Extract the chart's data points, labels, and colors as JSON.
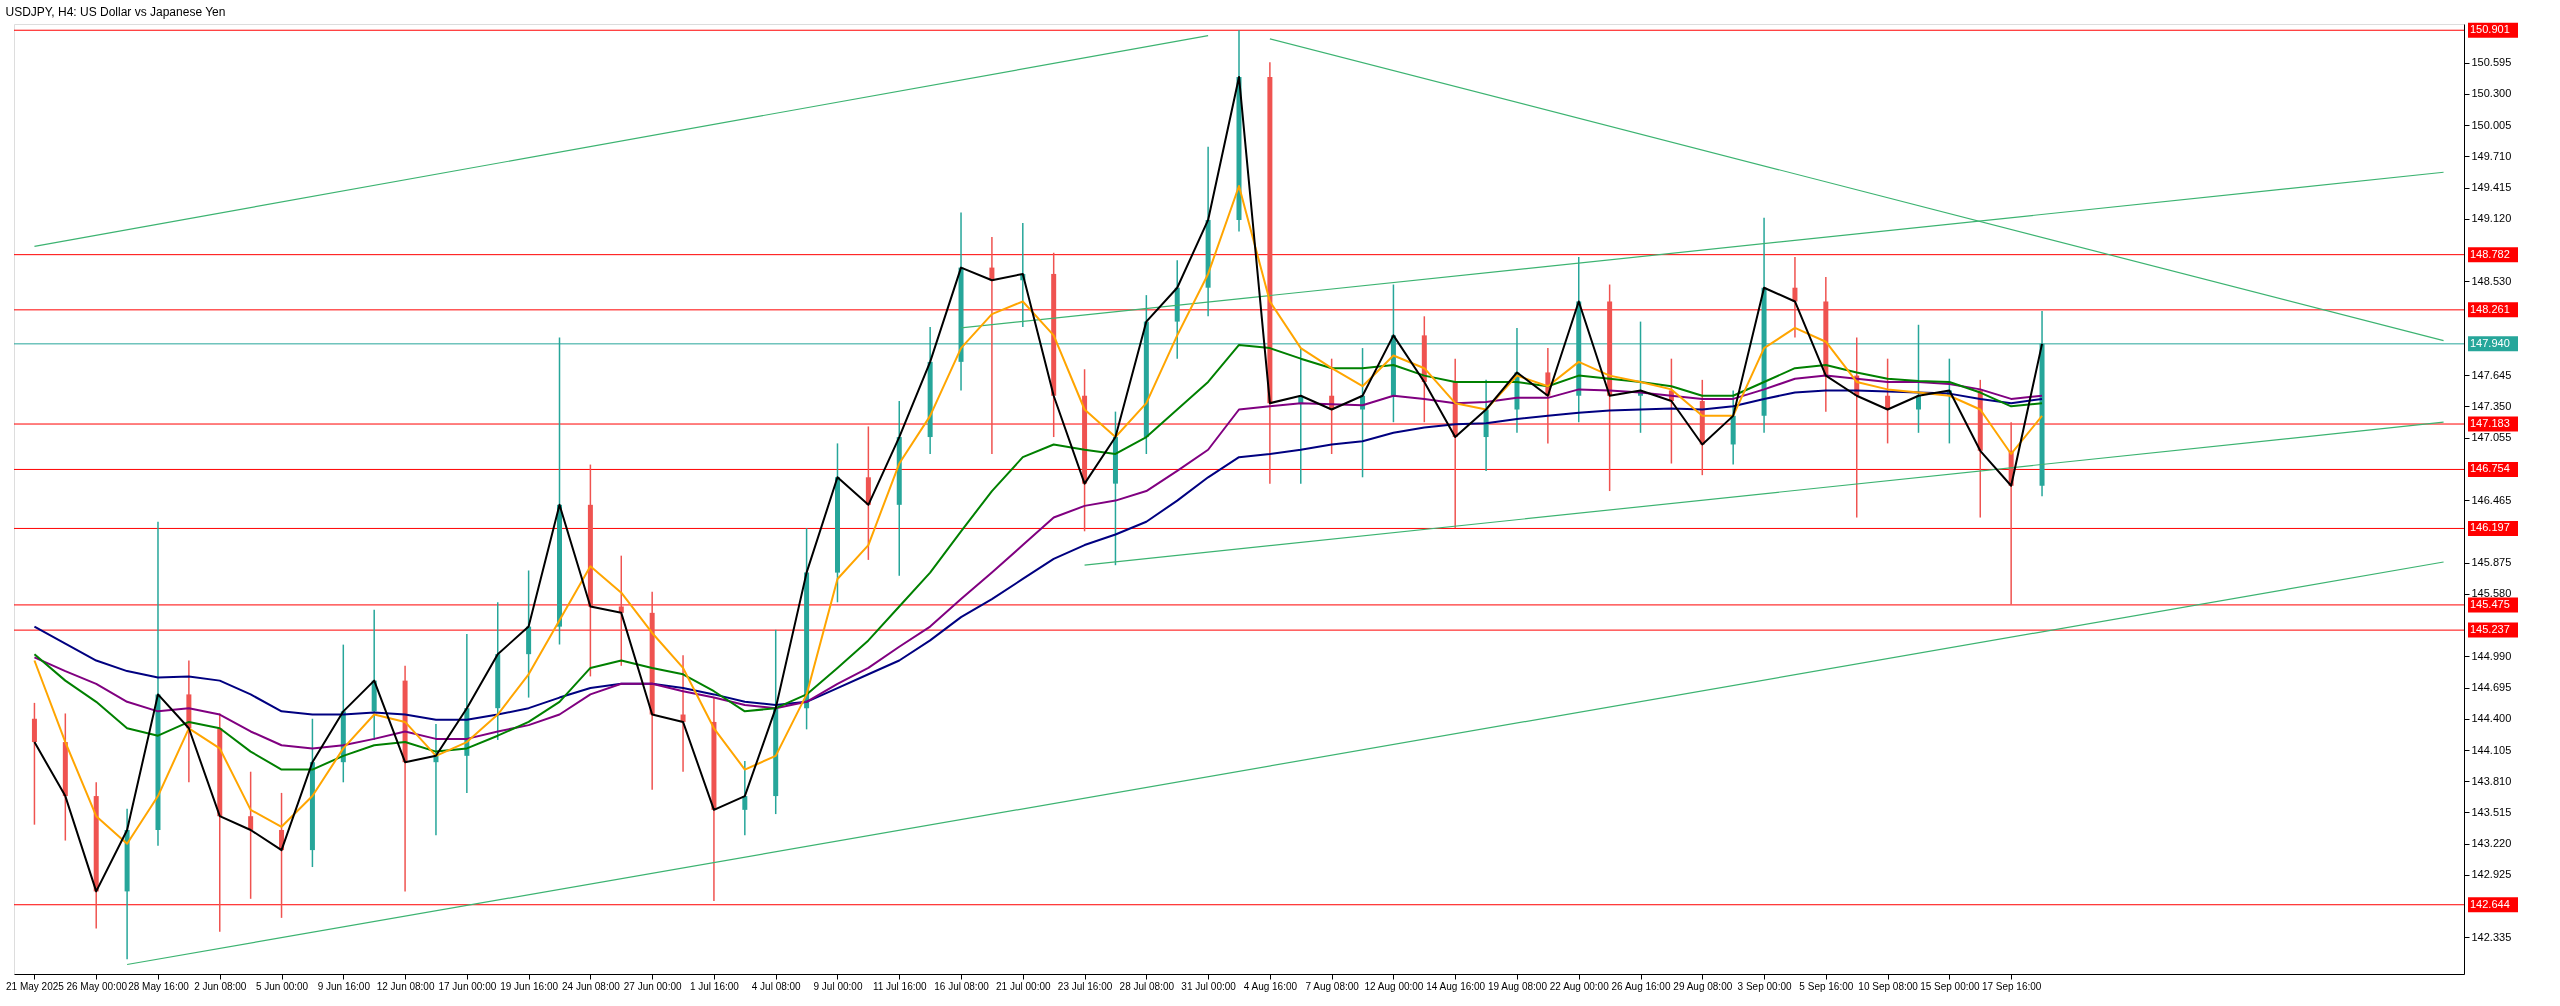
{
  "chart_data": {
    "type": "candlestick",
    "title": "USDJPY, H4:  US Dollar vs Japanese Yen",
    "categories": [
      "21 May 2025",
      null,
      "26 May 00:00",
      null,
      "28 May 16:00",
      null,
      "2 Jun 08:00",
      null,
      "5 Jun 00:00",
      null,
      "9 Jun 16:00",
      null,
      "12 Jun 08:00",
      null,
      "17 Jun 00:00",
      null,
      "19 Jun 16:00",
      null,
      "24 Jun 08:00",
      null,
      "27 Jun 00:00",
      null,
      "1 Jul 16:00",
      null,
      "4 Jul 08:00",
      null,
      "9 Jul 00:00",
      null,
      "11 Jul 16:00",
      null,
      "16 Jul 08:00",
      null,
      "21 Jul 00:00",
      null,
      "23 Jul 16:00",
      null,
      "28 Jul 08:00",
      null,
      "31 Jul 00:00",
      null,
      "4 Aug 16:00",
      null,
      "7 Aug 08:00",
      null,
      "12 Aug 00:00",
      null,
      "14 Aug 16:00",
      null,
      "19 Aug 08:00",
      null,
      "22 Aug 00:00",
      null,
      "26 Aug 16:00",
      null,
      "29 Aug 08:00",
      null,
      "3 Sep 00:00",
      null,
      "5 Sep 16:00",
      null,
      "10 Sep 08:00",
      null,
      "15 Sep 00:00",
      null,
      "17 Sep 16:00",
      null,
      null,
      null,
      null,
      null,
      null,
      null,
      null,
      null,
      null,
      null,
      null,
      null,
      null
    ],
    "ohlc": [
      [
        144.4,
        144.55,
        143.4,
        144.18
      ],
      [
        144.18,
        144.45,
        143.25,
        143.67
      ],
      [
        143.67,
        143.8,
        142.42,
        142.77
      ],
      [
        142.77,
        143.55,
        142.13,
        143.35
      ],
      [
        143.35,
        146.26,
        143.2,
        144.63
      ],
      [
        144.63,
        144.95,
        143.8,
        144.31
      ],
      [
        144.31,
        144.45,
        142.39,
        143.48
      ],
      [
        143.48,
        143.9,
        142.7,
        143.35
      ],
      [
        143.35,
        143.7,
        142.52,
        143.16
      ],
      [
        143.16,
        144.4,
        143.0,
        143.99
      ],
      [
        143.99,
        145.1,
        143.8,
        144.47
      ],
      [
        144.47,
        145.43,
        144.2,
        144.76
      ],
      [
        144.76,
        144.9,
        142.77,
        143.99
      ],
      [
        143.99,
        144.35,
        143.3,
        144.05
      ],
      [
        144.05,
        145.2,
        143.7,
        144.5
      ],
      [
        144.5,
        145.5,
        144.2,
        145.01
      ],
      [
        145.01,
        145.8,
        144.6,
        145.27
      ],
      [
        145.27,
        148.0,
        145.1,
        146.42
      ],
      [
        146.42,
        146.8,
        144.8,
        145.46
      ],
      [
        145.46,
        145.94,
        144.9,
        145.4
      ],
      [
        145.4,
        145.6,
        143.73,
        144.44
      ],
      [
        144.44,
        145.0,
        143.9,
        144.37
      ],
      [
        144.37,
        144.6,
        142.68,
        143.54
      ],
      [
        143.54,
        144.0,
        143.3,
        143.67
      ],
      [
        143.67,
        145.24,
        143.5,
        144.5
      ],
      [
        144.5,
        146.2,
        144.3,
        145.78
      ],
      [
        145.78,
        147.0,
        145.5,
        146.68
      ],
      [
        146.68,
        147.16,
        145.9,
        146.42
      ],
      [
        146.42,
        147.4,
        145.75,
        147.06
      ],
      [
        147.06,
        148.1,
        146.9,
        147.77
      ],
      [
        147.77,
        149.18,
        147.5,
        148.66
      ],
      [
        148.66,
        148.95,
        146.9,
        148.54
      ],
      [
        148.54,
        149.08,
        148.1,
        148.6
      ],
      [
        148.6,
        148.8,
        147.06,
        147.45
      ],
      [
        147.45,
        147.7,
        146.17,
        146.62
      ],
      [
        146.62,
        147.3,
        145.85,
        147.06
      ],
      [
        147.06,
        148.4,
        146.9,
        148.15
      ],
      [
        148.15,
        148.73,
        147.8,
        148.47
      ],
      [
        148.47,
        149.8,
        148.2,
        149.11
      ],
      [
        149.11,
        150.9,
        149.0,
        150.46
      ],
      [
        150.46,
        150.6,
        146.62,
        147.38
      ],
      [
        147.38,
        147.9,
        146.62,
        147.45
      ],
      [
        147.45,
        147.8,
        146.9,
        147.32
      ],
      [
        147.32,
        147.9,
        146.68,
        147.45
      ],
      [
        147.45,
        148.5,
        147.2,
        148.02
      ],
      [
        148.02,
        148.2,
        147.2,
        147.58
      ],
      [
        147.58,
        147.8,
        146.2,
        147.06
      ],
      [
        147.06,
        147.6,
        146.74,
        147.32
      ],
      [
        147.32,
        148.09,
        147.1,
        147.67
      ],
      [
        147.67,
        147.9,
        147.0,
        147.45
      ],
      [
        147.45,
        148.76,
        147.2,
        148.34
      ],
      [
        148.34,
        148.5,
        146.55,
        147.45
      ],
      [
        147.45,
        148.15,
        147.1,
        147.5
      ],
      [
        147.5,
        147.8,
        146.81,
        147.4
      ],
      [
        147.4,
        147.6,
        146.7,
        146.99
      ],
      [
        146.99,
        147.5,
        146.8,
        147.26
      ],
      [
        147.26,
        149.13,
        147.1,
        148.47
      ],
      [
        148.47,
        148.76,
        148.0,
        148.34
      ],
      [
        148.34,
        148.57,
        147.3,
        147.64
      ],
      [
        147.64,
        148.0,
        146.3,
        147.45
      ],
      [
        147.45,
        147.8,
        147.0,
        147.32
      ],
      [
        147.32,
        148.12,
        147.1,
        147.45
      ],
      [
        147.45,
        147.8,
        147.0,
        147.5
      ],
      [
        147.5,
        147.6,
        146.3,
        146.93
      ],
      [
        146.93,
        147.2,
        145.48,
        146.6
      ],
      [
        146.6,
        148.25,
        146.5,
        147.94
      ],
      null,
      null,
      null,
      null,
      null,
      null,
      null,
      null,
      null,
      null,
      null,
      null,
      null
    ],
    "colors": [
      "#ef5350",
      "#ef5350",
      "#ef5350",
      "#26a69a",
      "#26a69a",
      "#ef5350",
      "#ef5350",
      "#ef5350",
      "#ef5350",
      "#26a69a",
      "#26a69a",
      "#26a69a",
      "#ef5350",
      "#26a69a",
      "#26a69a",
      "#26a69a",
      "#26a69a",
      "#26a69a",
      "#ef5350",
      "#ef5350",
      "#ef5350",
      "#ef5350",
      "#ef5350",
      "#26a69a",
      "#26a69a",
      "#26a69a",
      "#26a69a",
      "#ef5350",
      "#26a69a",
      "#26a69a",
      "#26a69a",
      "#ef5350",
      "#26a69a",
      "#ef5350",
      "#ef5350",
      "#26a69a",
      "#26a69a",
      "#26a69a",
      "#26a69a",
      "#26a69a",
      "#ef5350",
      "#26a69a",
      "#ef5350",
      "#26a69a",
      "#26a69a",
      "#ef5350",
      "#ef5350",
      "#26a69a",
      "#26a69a",
      "#ef5350",
      "#26a69a",
      "#ef5350",
      "#26a69a",
      "#ef5350",
      "#ef5350",
      "#26a69a",
      "#26a69a",
      "#ef5350",
      "#ef5350",
      "#ef5350",
      "#ef5350",
      "#26a69a",
      "#26a69a",
      "#ef5350",
      "#ef5350",
      "#26a69a",
      null,
      null,
      null,
      null,
      null,
      null,
      null,
      null,
      null,
      null,
      null,
      null,
      null
    ],
    "series": [
      {
        "type": "line",
        "color": "#3cb371",
        "values": [
          148.86,
          null,
          null,
          null,
          null,
          null,
          null,
          null,
          null,
          null,
          null,
          null,
          null,
          null,
          null,
          null,
          null,
          null,
          null,
          null,
          null,
          null,
          null,
          null,
          null,
          null,
          null,
          null,
          null,
          null,
          null,
          null,
          null,
          null,
          null,
          null,
          null,
          null,
          150.85,
          null,
          null,
          null,
          null,
          null,
          null,
          null,
          null,
          null,
          null,
          null,
          null,
          null,
          null,
          null,
          null,
          null,
          null,
          null,
          null,
          null,
          null,
          null,
          null,
          null,
          null,
          null,
          null,
          null,
          null,
          null,
          null,
          null,
          null,
          null,
          null,
          null,
          null,
          null,
          null
        ]
      },
      {
        "type": "line",
        "color": "#3cb371",
        "values": [
          null,
          null,
          null,
          null,
          null,
          null,
          null,
          null,
          null,
          null,
          null,
          null,
          null,
          null,
          null,
          null,
          null,
          null,
          null,
          null,
          null,
          null,
          null,
          null,
          null,
          null,
          null,
          null,
          null,
          null,
          null,
          null,
          null,
          null,
          null,
          null,
          null,
          null,
          null,
          null,
          150.82,
          null,
          null,
          null,
          null,
          null,
          null,
          null,
          null,
          null,
          null,
          null,
          null,
          null,
          null,
          null,
          null,
          null,
          null,
          null,
          null,
          null,
          null,
          null,
          null,
          null,
          null,
          null,
          null,
          null,
          null,
          null,
          null,
          null,
          null,
          null,
          null,
          null,
          147.97
        ]
      },
      {
        "type": "line",
        "color": "#3cb371",
        "values": [
          null,
          null,
          null,
          null,
          null,
          null,
          null,
          null,
          null,
          null,
          null,
          null,
          null,
          null,
          null,
          null,
          null,
          null,
          null,
          null,
          null,
          null,
          null,
          null,
          null,
          null,
          null,
          null,
          null,
          null,
          148.09,
          null,
          null,
          null,
          null,
          null,
          null,
          null,
          null,
          null,
          null,
          null,
          null,
          null,
          null,
          null,
          null,
          null,
          null,
          null,
          null,
          null,
          null,
          null,
          null,
          null,
          null,
          null,
          null,
          null,
          null,
          null,
          null,
          null,
          null,
          null,
          null,
          null,
          null,
          null,
          null,
          null,
          null,
          null,
          null,
          null,
          null,
          null,
          149.56
        ]
      },
      {
        "type": "line",
        "color": "#3cb371",
        "values": [
          null,
          null,
          null,
          null,
          null,
          null,
          null,
          null,
          null,
          null,
          null,
          null,
          null,
          null,
          null,
          null,
          null,
          null,
          null,
          null,
          null,
          null,
          null,
          null,
          null,
          null,
          null,
          null,
          null,
          null,
          null,
          null,
          null,
          null,
          145.85,
          null,
          null,
          null,
          null,
          null,
          null,
          null,
          null,
          null,
          null,
          null,
          null,
          null,
          null,
          null,
          null,
          null,
          null,
          null,
          null,
          null,
          null,
          null,
          null,
          null,
          null,
          null,
          null,
          null,
          null,
          null,
          null,
          null,
          null,
          null,
          null,
          null,
          null,
          null,
          null,
          null,
          null,
          null,
          147.2
        ]
      },
      {
        "type": "line",
        "color": "#3cb371",
        "values": [
          null,
          null,
          null,
          142.08,
          null,
          null,
          null,
          null,
          null,
          null,
          null,
          null,
          null,
          null,
          null,
          null,
          null,
          null,
          null,
          null,
          null,
          null,
          null,
          null,
          null,
          null,
          null,
          null,
          null,
          null,
          null,
          null,
          null,
          null,
          null,
          null,
          null,
          null,
          null,
          null,
          null,
          null,
          null,
          null,
          null,
          null,
          null,
          null,
          null,
          null,
          null,
          null,
          null,
          null,
          null,
          null,
          null,
          null,
          null,
          null,
          null,
          null,
          null,
          null,
          null,
          null,
          null,
          null,
          null,
          null,
          null,
          null,
          null,
          null,
          null,
          null,
          null,
          null,
          145.88
        ]
      },
      {
        "type": "line",
        "color": "#000080",
        "values": [
          145.27,
          145.11,
          144.95,
          144.85,
          144.79,
          144.8,
          144.76,
          144.63,
          144.47,
          144.44,
          144.44,
          144.46,
          144.44,
          144.39,
          144.39,
          144.44,
          144.5,
          144.6,
          144.69,
          144.73,
          144.73,
          144.69,
          144.63,
          144.56,
          144.53,
          144.56,
          144.69,
          144.82,
          144.95,
          145.14,
          145.36,
          145.53,
          145.72,
          145.91,
          146.04,
          146.14,
          146.26,
          146.46,
          146.68,
          146.87,
          146.9,
          146.94,
          146.99,
          147.02,
          147.1,
          147.15,
          147.18,
          147.19,
          147.23,
          147.26,
          147.29,
          147.31,
          147.32,
          147.33,
          147.32,
          147.35,
          147.42,
          147.48,
          147.5,
          147.5,
          147.49,
          147.48,
          147.47,
          147.42,
          147.38,
          147.42,
          null,
          null,
          null,
          null,
          null,
          null,
          null,
          null,
          null,
          null,
          null,
          null,
          null
        ]
      },
      {
        "type": "line",
        "color": "#800080",
        "values": [
          144.98,
          144.85,
          144.73,
          144.56,
          144.47,
          144.5,
          144.44,
          144.28,
          144.15,
          144.12,
          144.15,
          144.21,
          144.28,
          144.21,
          144.21,
          144.28,
          144.34,
          144.44,
          144.63,
          144.73,
          144.73,
          144.66,
          144.6,
          144.53,
          144.5,
          144.56,
          144.73,
          144.88,
          145.08,
          145.27,
          145.53,
          145.78,
          146.04,
          146.3,
          146.41,
          146.46,
          146.55,
          146.74,
          146.94,
          147.32,
          147.35,
          147.38,
          147.37,
          147.36,
          147.45,
          147.42,
          147.38,
          147.39,
          147.43,
          147.43,
          147.51,
          147.5,
          147.48,
          147.45,
          147.42,
          147.42,
          147.51,
          147.61,
          147.64,
          147.61,
          147.58,
          147.58,
          147.56,
          147.51,
          147.42,
          147.45,
          null,
          null,
          null,
          null,
          null,
          null,
          null,
          null,
          null,
          null,
          null,
          null,
          null
        ]
      },
      {
        "type": "line",
        "color": "#008000",
        "values": [
          145.01,
          144.76,
          144.56,
          144.31,
          144.24,
          144.37,
          144.31,
          144.09,
          143.92,
          143.92,
          144.05,
          144.15,
          144.18,
          144.09,
          144.12,
          144.24,
          144.37,
          144.56,
          144.88,
          144.95,
          144.88,
          144.82,
          144.66,
          144.47,
          144.5,
          144.63,
          144.88,
          145.14,
          145.46,
          145.78,
          146.17,
          146.55,
          146.87,
          146.99,
          146.94,
          146.9,
          147.06,
          147.32,
          147.58,
          147.93,
          147.9,
          147.8,
          147.71,
          147.71,
          147.74,
          147.64,
          147.58,
          147.58,
          147.58,
          147.54,
          147.64,
          147.61,
          147.58,
          147.54,
          147.45,
          147.45,
          147.58,
          147.71,
          147.74,
          147.67,
          147.61,
          147.59,
          147.58,
          147.48,
          147.35,
          147.38,
          null,
          null,
          null,
          null,
          null,
          null,
          null,
          null,
          null,
          null,
          null,
          null,
          null
        ]
      },
      {
        "type": "line",
        "color": "#ffa500",
        "values": [
          144.95,
          144.18,
          143.48,
          143.22,
          143.67,
          144.31,
          144.12,
          143.54,
          143.38,
          143.67,
          144.12,
          144.44,
          144.37,
          144.05,
          144.18,
          144.44,
          144.82,
          145.33,
          145.84,
          145.59,
          145.21,
          144.88,
          144.31,
          143.92,
          144.05,
          144.63,
          145.72,
          146.04,
          146.81,
          147.26,
          147.9,
          148.22,
          148.34,
          148.02,
          147.32,
          147.06,
          147.38,
          148.02,
          148.6,
          149.43,
          148.34,
          147.9,
          147.71,
          147.54,
          147.83,
          147.71,
          147.38,
          147.32,
          147.64,
          147.54,
          147.77,
          147.64,
          147.58,
          147.51,
          147.26,
          147.26,
          147.9,
          148.09,
          147.96,
          147.58,
          147.51,
          147.48,
          147.45,
          147.32,
          146.9,
          147.26,
          null,
          null,
          null,
          null,
          null,
          null,
          null,
          null,
          null,
          null,
          null,
          null,
          null
        ]
      },
      {
        "type": "line",
        "color": "#000000",
        "values": [
          144.18,
          143.67,
          142.77,
          143.35,
          144.63,
          144.31,
          143.48,
          143.35,
          143.16,
          143.99,
          144.47,
          144.76,
          143.99,
          144.05,
          144.5,
          145.01,
          145.27,
          146.42,
          145.46,
          145.4,
          144.44,
          144.37,
          143.54,
          143.67,
          144.5,
          145.78,
          146.68,
          146.42,
          147.06,
          147.77,
          148.66,
          148.54,
          148.6,
          147.45,
          146.62,
          147.06,
          148.15,
          148.47,
          149.11,
          150.46,
          147.38,
          147.45,
          147.32,
          147.45,
          148.02,
          147.58,
          147.06,
          147.32,
          147.67,
          147.45,
          148.34,
          147.45,
          147.5,
          147.4,
          146.99,
          147.26,
          148.47,
          148.34,
          147.64,
          147.45,
          147.32,
          147.45,
          147.5,
          146.93,
          146.6,
          147.94,
          null,
          null,
          null,
          null,
          null,
          null,
          null,
          null,
          null,
          null,
          null,
          null,
          null
        ]
      }
    ],
    "ylim": [
      141.99,
      150.96
    ],
    "yticks": [
      142.335,
      142.925,
      {
        "value": 143.22,
        "label": "143.220"
      },
      143.515,
      {
        "value": 143.81,
        "label": "143.810"
      },
      144.105,
      {
        "value": 144.4,
        "label": "144.400"
      },
      144.695,
      {
        "value": 144.99,
        "label": "144.990"
      },
      {
        "value": 145.58,
        "label": "145.580"
      },
      145.875,
      146.465,
      147.055,
      {
        "value": 147.35,
        "label": "147.350"
      },
      147.645,
      {
        "value": 148.53,
        "label": "148.530"
      },
      {
        "value": 149.12,
        "label": "149.120"
      },
      149.415,
      {
        "value": 149.71,
        "label": "149.710"
      },
      150.005,
      {
        "value": 150.3,
        "label": "150.300"
      },
      150.595
    ],
    "ref_lines": [
      {
        "axis": "y",
        "value": 150.901,
        "label": "150.901",
        "color": "#ff0000"
      },
      {
        "axis": "y",
        "value": 148.782,
        "label": "148.782",
        "color": "#ff0000"
      },
      {
        "axis": "y",
        "value": 148.261,
        "label": "148.261",
        "color": "#ff0000"
      },
      {
        "axis": "y",
        "value": 147.94,
        "label": "147.940",
        "color": "#26a69a"
      },
      {
        "axis": "y",
        "value": 147.183,
        "label": "147.183",
        "color": "#ff0000"
      },
      {
        "axis": "y",
        "value": 146.754,
        "label": "146.754",
        "color": "#ff0000"
      },
      {
        "axis": "y",
        "value": 146.197,
        "label": "146.197",
        "color": "#ff0000"
      },
      {
        "axis": "y",
        "value": 145.475,
        "label": "145.475",
        "color": "#ff0000"
      },
      {
        "axis": "y",
        "value": 145.237,
        "label": "145.237",
        "color": "#ff0000"
      },
      {
        "axis": "y",
        "value": 142.644,
        "label": "142.644",
        "color": "#ff0000"
      }
    ],
    "grid": false
  }
}
